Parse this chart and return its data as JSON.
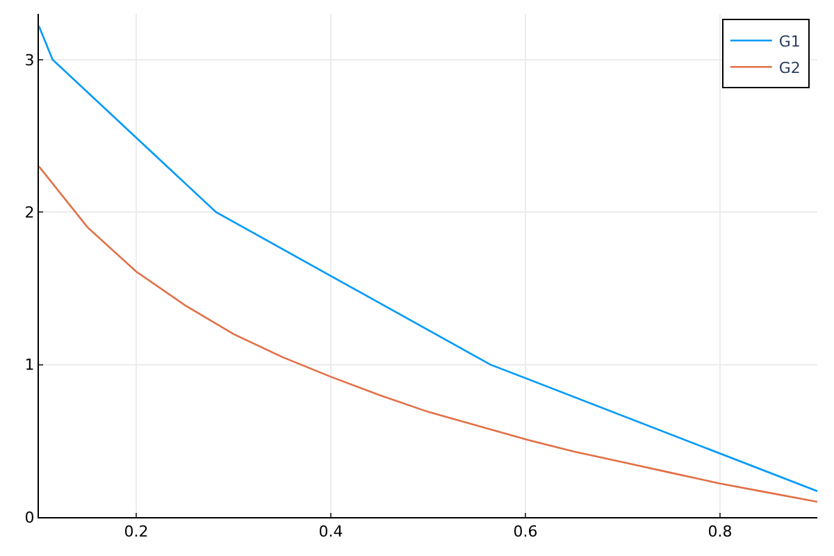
{
  "chart_data": {
    "type": "line",
    "xlim": [
      0.1,
      0.9
    ],
    "ylim": [
      0,
      3.3
    ],
    "xticks": [
      0.2,
      0.4,
      0.6,
      0.8
    ],
    "yticks": [
      0,
      1,
      2,
      3
    ],
    "grid": true,
    "legend": "top right",
    "marker": "none",
    "line_style": "solid",
    "series": [
      {
        "name": "G1",
        "color": "#009af9",
        "x": [
          0.1,
          0.114,
          0.282,
          0.564,
          0.9
        ],
        "values": [
          3.22,
          3.0,
          2.0,
          1.0,
          0.17
        ]
      },
      {
        "name": "G2",
        "color": "#e26f46",
        "x": [
          0.1,
          0.15,
          0.2,
          0.25,
          0.3,
          0.35,
          0.4,
          0.45,
          0.5,
          0.55,
          0.6,
          0.65,
          0.7,
          0.75,
          0.8,
          0.85,
          0.9
        ],
        "values": [
          2.3,
          1.9,
          1.61,
          1.39,
          1.2,
          1.05,
          0.92,
          0.8,
          0.69,
          0.6,
          0.51,
          0.43,
          0.36,
          0.29,
          0.22,
          0.16,
          0.1
        ]
      }
    ]
  }
}
